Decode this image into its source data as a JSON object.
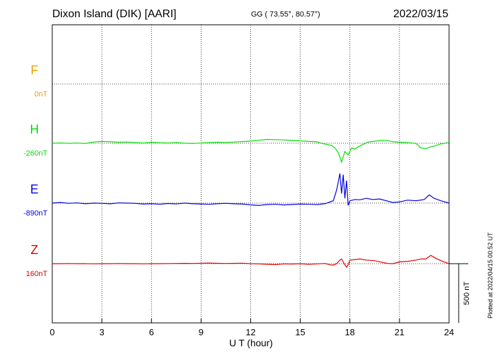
{
  "header": {
    "station": "Dixon Island (DIK)  [AARI]",
    "coords": "GG ( 73.55°,  80.57°)",
    "date": "2022/03/15"
  },
  "footer": {
    "plotted": "Plotted at 2022/04/15 00:52 UT"
  },
  "chart_data": {
    "type": "line",
    "xlabel": "U T (hour)",
    "xlim": [
      0,
      24
    ],
    "xticks": [
      0,
      3,
      6,
      9,
      12,
      15,
      18,
      21,
      24
    ],
    "scale_bar_label": "500 nT",
    "grid": true,
    "series": [
      {
        "name": "F",
        "baseline_label": "0nT",
        "color": "#f0a000",
        "values": []
      },
      {
        "name": "H",
        "baseline_label": "-260nT",
        "color": "#00e000",
        "x": [
          0,
          0.5,
          1,
          1.5,
          2,
          2.5,
          3,
          3.5,
          4,
          4.5,
          5,
          5.5,
          6,
          6.5,
          7,
          7.5,
          8,
          8.5,
          9,
          9.5,
          10,
          10.5,
          11,
          11.5,
          12,
          12.5,
          13,
          13.5,
          14,
          14.5,
          15,
          15.5,
          16,
          16.3,
          16.6,
          16.9,
          17.1,
          17.3,
          17.5,
          17.7,
          17.9,
          18.1,
          18.3,
          18.5,
          18.8,
          19.1,
          19.4,
          19.7,
          20,
          20.3,
          20.6,
          21,
          21.5,
          22,
          22.3,
          22.6,
          22.9,
          23.2,
          23.5,
          24
        ],
        "values": [
          -260,
          -258,
          -261,
          -259,
          -262,
          -250,
          -245,
          -248,
          -252,
          -250,
          -255,
          -258,
          -252,
          -256,
          -258,
          -255,
          -260,
          -262,
          -258,
          -255,
          -252,
          -255,
          -250,
          -246,
          -242,
          -235,
          -228,
          -230,
          -232,
          -236,
          -240,
          -245,
          -248,
          -262,
          -270,
          -280,
          -300,
          -340,
          -420,
          -330,
          -360,
          -300,
          -310,
          -290,
          -270,
          -250,
          -245,
          -240,
          -235,
          -238,
          -248,
          -252,
          -255,
          -262,
          -300,
          -305,
          -290,
          -280,
          -265,
          -255
        ]
      },
      {
        "name": "E",
        "baseline_label": "-890nT",
        "color": "#0000e0",
        "x": [
          0,
          0.5,
          1,
          1.5,
          2,
          2.5,
          3,
          3.5,
          4,
          4.5,
          5,
          5.5,
          6,
          6.5,
          7,
          7.5,
          8,
          8.5,
          9,
          9.5,
          10,
          10.5,
          11,
          11.5,
          12,
          12.5,
          13,
          13.5,
          14,
          14.5,
          15,
          15.5,
          16,
          16.5,
          17,
          17.2,
          17.4,
          17.5,
          17.6,
          17.7,
          17.8,
          17.9,
          18,
          18.3,
          18.6,
          19,
          19.4,
          19.8,
          20.2,
          20.6,
          21,
          21.5,
          22,
          22.5,
          22.8,
          23.1,
          23.5,
          24
        ],
        "values": [
          -890,
          -885,
          -892,
          -888,
          -895,
          -890,
          -892,
          -896,
          -888,
          -890,
          -892,
          -898,
          -895,
          -900,
          -893,
          -897,
          -890,
          -895,
          -898,
          -900,
          -895,
          -892,
          -896,
          -898,
          -905,
          -910,
          -902,
          -900,
          -905,
          -902,
          -898,
          -900,
          -902,
          -895,
          -870,
          -780,
          -640,
          -810,
          -650,
          -850,
          -700,
          -910,
          -870,
          -860,
          -862,
          -850,
          -860,
          -855,
          -870,
          -885,
          -880,
          -865,
          -870,
          -860,
          -820,
          -850,
          -870,
          -890
        ]
      },
      {
        "name": "Z",
        "baseline_label": "160nT",
        "color": "#e00000",
        "x": [
          0,
          0.5,
          1,
          1.5,
          2,
          2.5,
          3,
          3.5,
          4,
          4.5,
          5,
          5.5,
          6,
          6.5,
          7,
          7.5,
          8,
          8.5,
          9,
          9.5,
          10,
          10.5,
          11,
          11.5,
          12,
          12.5,
          13,
          13.5,
          14,
          14.5,
          15,
          15.5,
          16,
          16.5,
          16.8,
          17,
          17.2,
          17.4,
          17.5,
          17.7,
          17.8,
          17.9,
          18,
          18.3,
          18.6,
          19,
          19.5,
          20,
          20.3,
          20.6,
          21,
          21.5,
          22,
          22.3,
          22.6,
          22.9,
          23.2,
          23.6,
          24
        ],
        "values": [
          160,
          160,
          161,
          160,
          160,
          159,
          160,
          160,
          161,
          160,
          160,
          159,
          160,
          160,
          161,
          162,
          163,
          162,
          164,
          165,
          163,
          162,
          163,
          164,
          160,
          158,
          155,
          152,
          158,
          157,
          160,
          155,
          158,
          162,
          150,
          148,
          160,
          190,
          200,
          150,
          130,
          150,
          190,
          195,
          200,
          190,
          185,
          170,
          162,
          160,
          175,
          180,
          190,
          200,
          200,
          230,
          205,
          180,
          160
        ]
      }
    ]
  }
}
